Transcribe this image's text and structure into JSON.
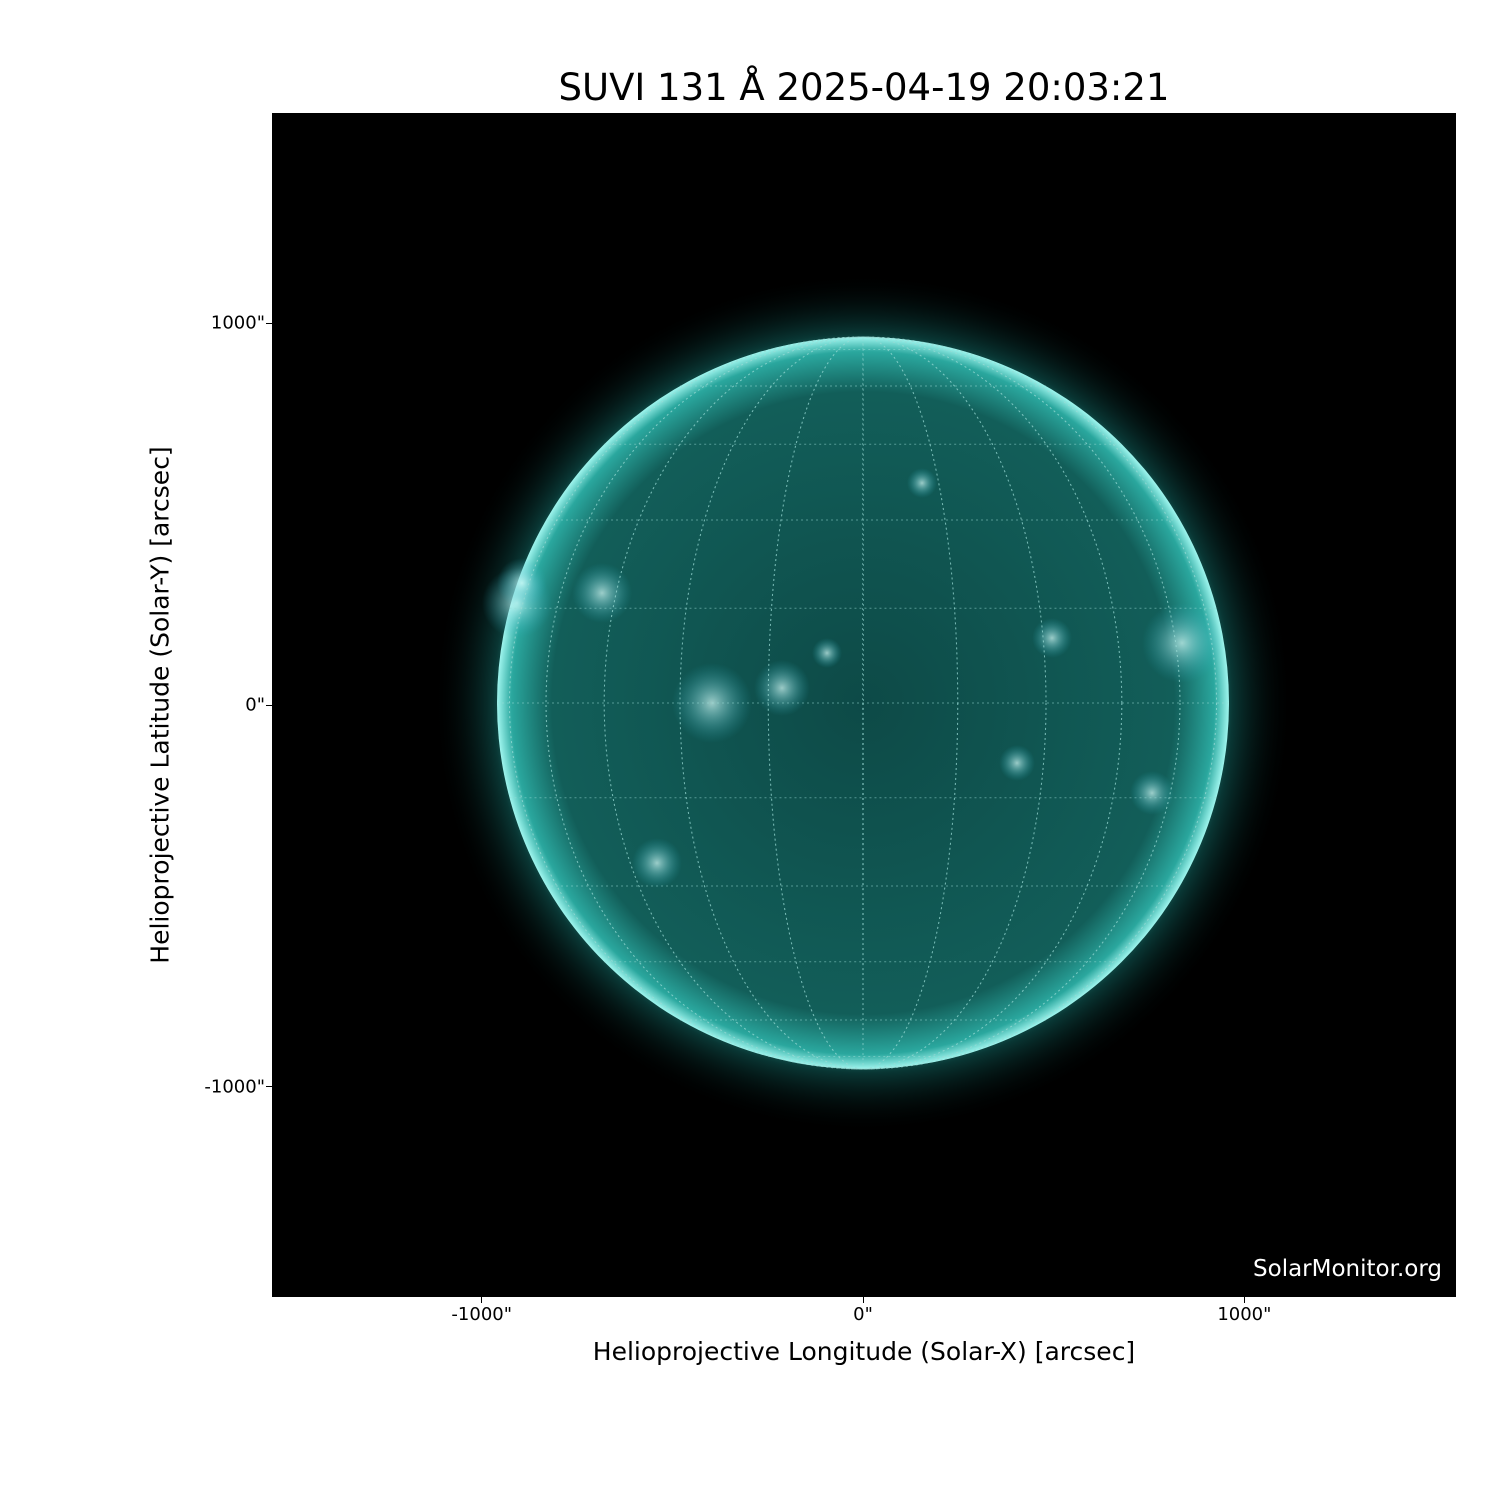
{
  "chart_data": {
    "type": "image",
    "title": "SUVI 131 Å 2025-04-19 20:03:21",
    "xlabel": "Helioprojective Longitude (Solar-X) [arcsec]",
    "ylabel": "Helioprojective Latitude (Solar-Y) [arcsec]",
    "xlim": [
      -1550,
      1555
    ],
    "ylim": [
      -1550,
      1550
    ],
    "xticks": [
      {
        "value": -1000,
        "label": "-1000\""
      },
      {
        "value": 0,
        "label": "0\""
      },
      {
        "value": 1000,
        "label": "1000\""
      }
    ],
    "yticks": [
      {
        "value": 1000,
        "label": "1000\""
      },
      {
        "value": 0,
        "label": "0\""
      },
      {
        "value": -1000,
        "label": "-1000\""
      }
    ],
    "solar_radius_arcsec": 961,
    "colormap": {
      "background": "#000000",
      "mid": "#0e6e6a",
      "bright": "#bffff8"
    },
    "grid": true,
    "watermark": "SolarMonitor.org"
  }
}
